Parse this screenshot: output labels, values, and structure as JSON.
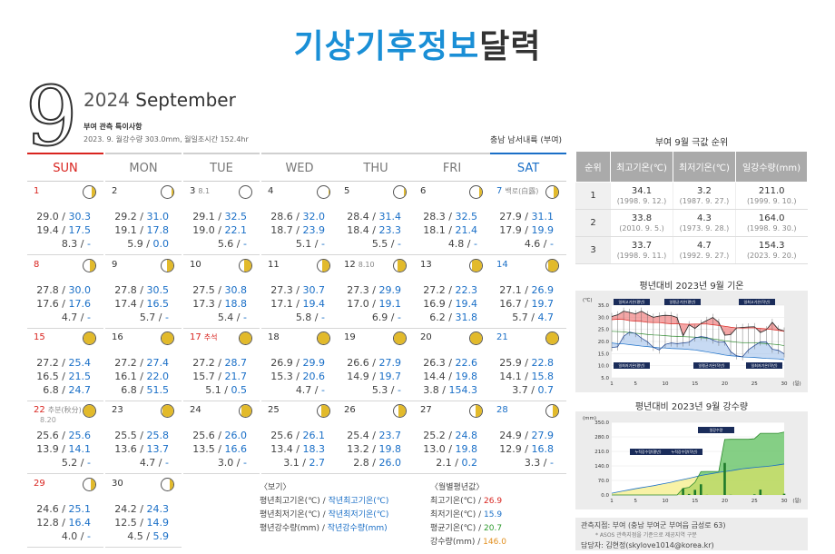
{
  "title": {
    "part1": "기상기후정보",
    "part2": "달력"
  },
  "month_number": "9",
  "year": "2024",
  "month_name": "September",
  "notes_title": "부여 관측 특이사항",
  "notes_body": "2023. 9. 월강수량 303.0mm, 월일조시간 152.4hr",
  "region": "충남 남서내륙 (부여)",
  "weekdays": [
    "SUN",
    "MON",
    "TUE",
    "WED",
    "THU",
    "FRI",
    "SAT"
  ],
  "days": [
    {
      "day": "1",
      "note": "",
      "sub": "",
      "max_avg": "29.0",
      "max": "30.3",
      "min_avg": "19.4",
      "min": "17.5",
      "rain_avg": "8.3",
      "rain": "-",
      "moon": 0.25
    },
    {
      "day": "2",
      "note": "",
      "sub": "",
      "max_avg": "29.2",
      "max": "31.0",
      "min_avg": "19.1",
      "min": "17.8",
      "rain_avg": "5.9",
      "rain": "0.0",
      "moon": 0.1
    },
    {
      "day": "3",
      "note": "8.1",
      "sub": "",
      "max_avg": "29.1",
      "max": "32.5",
      "min_avg": "19.0",
      "min": "22.1",
      "rain_avg": "5.6",
      "rain": "-",
      "moon": 0
    },
    {
      "day": "4",
      "note": "",
      "sub": "",
      "max_avg": "28.6",
      "max": "32.0",
      "min_avg": "18.7",
      "min": "23.9",
      "rain_avg": "5.1",
      "rain": "-",
      "moon": 0.05
    },
    {
      "day": "5",
      "note": "",
      "sub": "",
      "max_avg": "28.4",
      "max": "31.4",
      "min_avg": "18.4",
      "min": "23.3",
      "rain_avg": "5.5",
      "rain": "-",
      "moon": 0.1
    },
    {
      "day": "6",
      "note": "",
      "sub": "",
      "max_avg": "28.3",
      "max": "32.5",
      "min_avg": "18.1",
      "min": "21.4",
      "rain_avg": "4.8",
      "rain": "-",
      "moon": 0.2
    },
    {
      "day": "7",
      "note": "백로(白露)",
      "sub": "",
      "max_avg": "27.9",
      "max": "31.1",
      "min_avg": "17.9",
      "min": "19.9",
      "rain_avg": "4.6",
      "rain": "-",
      "moon": 0.3
    },
    {
      "day": "8",
      "note": "",
      "sub": "",
      "max_avg": "27.8",
      "max": "30.0",
      "min_avg": "17.6",
      "min": "17.6",
      "rain_avg": "4.7",
      "rain": "-",
      "moon": 0.4
    },
    {
      "day": "9",
      "note": "",
      "sub": "",
      "max_avg": "27.8",
      "max": "30.5",
      "min_avg": "17.4",
      "min": "16.5",
      "rain_avg": "5.7",
      "rain": "-",
      "moon": 0.45
    },
    {
      "day": "10",
      "note": "",
      "sub": "",
      "max_avg": "27.5",
      "max": "30.8",
      "min_avg": "17.3",
      "min": "18.8",
      "rain_avg": "5.4",
      "rain": "-",
      "moon": 0.5
    },
    {
      "day": "11",
      "note": "",
      "sub": "",
      "max_avg": "27.3",
      "max": "30.7",
      "min_avg": "17.1",
      "min": "19.4",
      "rain_avg": "5.8",
      "rain": "-",
      "moon": 0.55
    },
    {
      "day": "12",
      "note": "8.10",
      "sub": "",
      "max_avg": "27.3",
      "max": "29.9",
      "min_avg": "17.0",
      "min": "19.1",
      "rain_avg": "6.9",
      "rain": "-",
      "moon": 0.6
    },
    {
      "day": "13",
      "note": "",
      "sub": "",
      "max_avg": "27.2",
      "max": "22.3",
      "min_avg": "16.9",
      "min": "19.4",
      "rain_avg": "6.2",
      "rain": "31.8",
      "moon": 0.7
    },
    {
      "day": "14",
      "note": "",
      "sub": "",
      "max_avg": "27.1",
      "max": "26.9",
      "min_avg": "16.7",
      "min": "19.7",
      "rain_avg": "5.7",
      "rain": "4.7",
      "moon": 0.75
    },
    {
      "day": "15",
      "note": "",
      "sub": "",
      "max_avg": "27.2",
      "max": "25.4",
      "min_avg": "16.5",
      "min": "21.5",
      "rain_avg": "6.8",
      "rain": "24.7",
      "moon": 0.85
    },
    {
      "day": "16",
      "note": "",
      "sub": "",
      "max_avg": "27.2",
      "max": "27.4",
      "min_avg": "16.1",
      "min": "22.0",
      "rain_avg": "6.8",
      "rain": "51.5",
      "moon": 0.9
    },
    {
      "day": "17",
      "note": "추석",
      "sub": "",
      "max_avg": "27.2",
      "max": "28.7",
      "min_avg": "15.7",
      "min": "21.7",
      "rain_avg": "5.1",
      "rain": "0.5",
      "moon": 0.95
    },
    {
      "day": "18",
      "note": "",
      "sub": "",
      "max_avg": "26.9",
      "max": "29.9",
      "min_avg": "15.3",
      "min": "20.6",
      "rain_avg": "4.7",
      "rain": "-",
      "moon": 1
    },
    {
      "day": "19",
      "note": "",
      "sub": "",
      "max_avg": "26.6",
      "max": "27.9",
      "min_avg": "14.9",
      "min": "19.7",
      "rain_avg": "5.3",
      "rain": "-",
      "moon": 1
    },
    {
      "day": "20",
      "note": "",
      "sub": "",
      "max_avg": "26.3",
      "max": "22.6",
      "min_avg": "14.4",
      "min": "19.8",
      "rain_avg": "3.8",
      "rain": "154.3",
      "moon": 0.95
    },
    {
      "day": "21",
      "note": "",
      "sub": "",
      "max_avg": "25.9",
      "max": "22.8",
      "min_avg": "14.1",
      "min": "15.8",
      "rain_avg": "3.7",
      "rain": "0.7",
      "moon": 0.9
    },
    {
      "day": "22",
      "note": "추분(秋分)",
      "sub": "8.20",
      "max_avg": "25.6",
      "max": "25.6",
      "min_avg": "13.9",
      "min": "14.1",
      "rain_avg": "5.2",
      "rain": "-",
      "moon": 0.85
    },
    {
      "day": "23",
      "note": "",
      "sub": "",
      "max_avg": "25.5",
      "max": "25.8",
      "min_avg": "13.6",
      "min": "13.7",
      "rain_avg": "4.7",
      "rain": "-",
      "moon": 0.8
    },
    {
      "day": "24",
      "note": "",
      "sub": "",
      "max_avg": "25.6",
      "max": "26.0",
      "min_avg": "13.5",
      "min": "16.6",
      "rain_avg": "3.0",
      "rain": "-",
      "moon": 0.7
    },
    {
      "day": "25",
      "note": "",
      "sub": "",
      "max_avg": "25.6",
      "max": "26.1",
      "min_avg": "13.4",
      "min": "18.3",
      "rain_avg": "3.1",
      "rain": "2.7",
      "moon": 0.6
    },
    {
      "day": "26",
      "note": "",
      "sub": "",
      "max_avg": "25.4",
      "max": "23.7",
      "min_avg": "13.2",
      "min": "19.8",
      "rain_avg": "2.8",
      "rain": "26.0",
      "moon": 0.5
    },
    {
      "day": "27",
      "note": "",
      "sub": "",
      "max_avg": "25.2",
      "max": "24.8",
      "min_avg": "13.0",
      "min": "19.8",
      "rain_avg": "2.1",
      "rain": "0.2",
      "moon": 0.45
    },
    {
      "day": "28",
      "note": "",
      "sub": "",
      "max_avg": "24.9",
      "max": "27.9",
      "min_avg": "12.9",
      "min": "16.8",
      "rain_avg": "3.3",
      "rain": "-",
      "moon": 0.4
    },
    {
      "day": "29",
      "note": "",
      "sub": "",
      "max_avg": "24.6",
      "max": "25.1",
      "min_avg": "12.8",
      "min": "16.4",
      "rain_avg": "4.0",
      "rain": "-",
      "moon": 0.3
    },
    {
      "day": "30",
      "note": "",
      "sub": "",
      "max_avg": "24.2",
      "max": "24.3",
      "min_avg": "12.5",
      "min": "14.9",
      "rain_avg": "4.5",
      "rain": "5.9",
      "moon": 0.25
    }
  ],
  "legend": {
    "title": "〈보기〉",
    "l1a": "평년최고기온(℃) / ",
    "l1b": "작년최고기온(℃)",
    "l2a": "평년최저기온(℃) / ",
    "l2b": "작년최저기온(℃)",
    "l3a": "평년강수량(mm) / ",
    "l3b": "작년강수량(mm)"
  },
  "monthly": {
    "title": "〈월별평년값〉",
    "max_label": "최고기온(℃) / ",
    "max_value": "26.9",
    "min_label": "최저기온(℃) / ",
    "min_value": "15.9",
    "avg_label": "평균기온(℃) / ",
    "avg_value": "20.7",
    "rain_label": "강수량(mm) / ",
    "rain_value": "146.0"
  },
  "rank": {
    "title": "부여 9월 극값 순위",
    "headers": [
      "순위",
      "최고기온(℃)",
      "최저기온(℃)",
      "일강수량(mm)"
    ],
    "rows": [
      {
        "rank": "1",
        "max": "34.1",
        "max_date": "(1998. 9. 12.)",
        "min": "3.2",
        "min_date": "(1987. 9. 27.)",
        "rain": "211.0",
        "rain_date": "(1999. 9. 10.)"
      },
      {
        "rank": "2",
        "max": "33.8",
        "max_date": "(2010. 9. 5.)",
        "min": "4.3",
        "min_date": "(1973. 9. 28.)",
        "rain": "164.0",
        "rain_date": "(1998. 9. 30.)"
      },
      {
        "rank": "3",
        "max": "33.7",
        "max_date": "(1998. 9. 11.)",
        "min": "4.7",
        "min_date": "(1992. 9. 27.)",
        "rain": "154.3",
        "rain_date": "(2023. 9. 20.)"
      }
    ]
  },
  "chart_data": [
    {
      "type": "line",
      "title": "평년대비 2023년 9월 기온",
      "ylabel": "(℃)",
      "xlabel": "(일)",
      "ylim": [
        5,
        35
      ],
      "yticks": [
        "35.0",
        "30.0",
        "25.0",
        "20.0",
        "15.0",
        "10.0",
        "5.0"
      ],
      "xticks": [
        "1",
        "5",
        "10",
        "15",
        "20",
        "25",
        "30"
      ],
      "x": [
        1,
        2,
        3,
        4,
        5,
        6,
        7,
        8,
        9,
        10,
        11,
        12,
        13,
        14,
        15,
        16,
        17,
        18,
        19,
        20,
        21,
        22,
        23,
        24,
        25,
        26,
        27,
        28,
        29,
        30
      ],
      "annotations": [
        "일최고기온(평년)",
        "일평균기온(평년)",
        "일최고기온(작년)",
        "일최저기온(평년)",
        "일평균기온(작년)",
        "일최저기온(작년)"
      ],
      "series": [
        {
          "name": "일최고기온(작년)",
          "values": [
            30.3,
            31.0,
            32.5,
            32.0,
            31.4,
            32.5,
            31.1,
            30.0,
            30.5,
            30.8,
            30.7,
            29.9,
            22.3,
            26.9,
            25.4,
            27.4,
            28.7,
            29.9,
            27.9,
            22.6,
            22.8,
            25.6,
            25.8,
            26.0,
            26.1,
            23.7,
            24.8,
            27.9,
            25.1,
            24.3
          ]
        },
        {
          "name": "일최고기온(평년)",
          "values": [
            29.0,
            29.2,
            29.1,
            28.6,
            28.4,
            28.3,
            27.9,
            27.8,
            27.8,
            27.5,
            27.3,
            27.3,
            27.2,
            27.1,
            27.2,
            27.2,
            27.2,
            26.9,
            26.6,
            26.3,
            25.9,
            25.6,
            25.5,
            25.6,
            25.6,
            25.4,
            25.2,
            24.9,
            24.6,
            24.2
          ]
        },
        {
          "name": "일평균기온(평년)",
          "values": [
            24.2,
            24.1,
            24.0,
            23.6,
            23.4,
            23.2,
            22.9,
            22.7,
            22.6,
            22.4,
            22.2,
            22.1,
            22.0,
            21.9,
            21.8,
            21.6,
            21.4,
            21.1,
            20.7,
            20.3,
            20.0,
            19.7,
            19.5,
            19.5,
            19.5,
            19.3,
            19.1,
            18.9,
            18.7,
            18.3
          ]
        },
        {
          "name": "일최저기온(평년)",
          "values": [
            19.4,
            19.1,
            19.0,
            18.7,
            18.4,
            18.1,
            17.9,
            17.6,
            17.4,
            17.3,
            17.1,
            17.0,
            16.9,
            16.7,
            16.5,
            16.1,
            15.7,
            15.3,
            14.9,
            14.4,
            14.1,
            13.9,
            13.6,
            13.5,
            13.4,
            13.2,
            13.0,
            12.9,
            12.8,
            12.5
          ]
        },
        {
          "name": "일최저기온(작년)",
          "values": [
            17.5,
            17.8,
            22.1,
            23.9,
            23.3,
            21.4,
            19.9,
            17.6,
            16.5,
            18.8,
            19.4,
            19.1,
            19.4,
            19.7,
            21.5,
            22.0,
            21.7,
            20.6,
            19.7,
            19.8,
            15.8,
            14.1,
            13.7,
            16.6,
            18.3,
            19.8,
            19.8,
            16.8,
            16.4,
            14.9
          ]
        }
      ]
    },
    {
      "type": "area",
      "title": "평년대비 2023년 9월 강수량",
      "ylabel": "(mm)",
      "xlabel": "(일)",
      "ylim": [
        0,
        350
      ],
      "yticks": [
        "350.0",
        "280.0",
        "210.0",
        "140.0",
        "70.0",
        "0.0"
      ],
      "xticks": [
        "1",
        "5",
        "10",
        "15",
        "20",
        "25",
        "30"
      ],
      "annotations": [
        "누적강수량(평년)",
        "누적강수량(작년)",
        "일강수량"
      ],
      "x": [
        1,
        2,
        3,
        4,
        5,
        6,
        7,
        8,
        9,
        10,
        11,
        12,
        13,
        14,
        15,
        16,
        17,
        18,
        19,
        20,
        21,
        22,
        23,
        24,
        25,
        26,
        27,
        28,
        29,
        30
      ],
      "series": [
        {
          "name": "일강수량",
          "values": [
            0,
            0,
            0,
            0,
            0,
            0,
            0,
            0,
            0,
            0,
            0,
            0,
            31.8,
            4.7,
            24.7,
            51.5,
            0.5,
            0,
            0,
            154.3,
            0.7,
            0,
            0,
            0,
            2.7,
            26.0,
            0.2,
            0,
            0,
            5.9
          ]
        },
        {
          "name": "누적강수량(작년)",
          "values": [
            0,
            0,
            0,
            0,
            0,
            0,
            0,
            0,
            0,
            0,
            0,
            0,
            31.8,
            36.5,
            61.2,
            112.7,
            113.2,
            113.2,
            113.2,
            267.5,
            268.2,
            268.2,
            268.2,
            268.2,
            270.9,
            296.9,
            297.1,
            297.1,
            297.1,
            303.0
          ]
        },
        {
          "name": "누적강수량(평년)",
          "values": [
            8.3,
            14.2,
            19.8,
            24.9,
            30.4,
            35.2,
            39.8,
            44.5,
            50.2,
            55.6,
            61.4,
            68.3,
            74.5,
            80.2,
            87.0,
            93.8,
            98.9,
            103.6,
            108.9,
            112.7,
            116.4,
            121.6,
            126.3,
            129.3,
            132.4,
            135.2,
            137.3,
            140.6,
            144.6,
            149.1
          ]
        }
      ]
    }
  ],
  "footer": {
    "line1": "관측지점: 부여 (충남 부여군 부여읍 금성로 63)",
    "line2": "* ASOS 관측지점을 기준으로 제공지역 구분",
    "line3": "담당자: 김현정(skylove1014@korea.kr)"
  }
}
